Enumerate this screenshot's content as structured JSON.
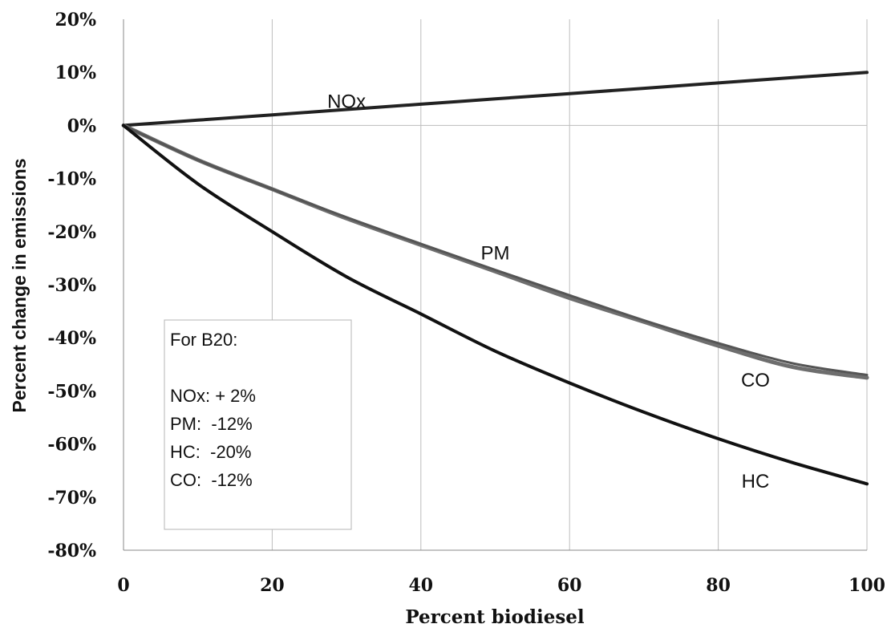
{
  "chart_data": {
    "type": "line",
    "title": "",
    "xlabel": "Percent biodiesel",
    "ylabel": "Percent change in emissions",
    "xlim": [
      0,
      100
    ],
    "ylim": [
      -80,
      20
    ],
    "x_ticks": [
      0,
      20,
      40,
      60,
      80,
      100
    ],
    "y_ticks": [
      20,
      10,
      0,
      -10,
      -20,
      -30,
      -40,
      -50,
      -60,
      -70,
      -80
    ],
    "x_tick_labels": [
      "0",
      "20",
      "40",
      "60",
      "80",
      "100"
    ],
    "y_tick_labels": [
      "20%",
      "10%",
      "0%",
      "-10%",
      "-20%",
      "-30%",
      "-40%",
      "-50%",
      "-60%",
      "-70%",
      "-80%"
    ],
    "grid": "vertical",
    "series": [
      {
        "name": "NOx",
        "color": "#222222",
        "x": [
          0,
          10,
          20,
          30,
          40,
          50,
          60,
          70,
          80,
          90,
          100
        ],
        "y": [
          0,
          1,
          2,
          3,
          4,
          5,
          6,
          7,
          8,
          9,
          10
        ]
      },
      {
        "name": "PM",
        "color": "#6e6e6e",
        "x": [
          0,
          10,
          20,
          30,
          40,
          50,
          60,
          70,
          80,
          90,
          100
        ],
        "y": [
          0,
          -6.5,
          -12,
          -17.5,
          -22.5,
          -27.5,
          -32.5,
          -37,
          -41.5,
          -45.5,
          -47.5
        ]
      },
      {
        "name": "CO",
        "color": "#555555",
        "x": [
          0,
          10,
          20,
          30,
          40,
          50,
          60,
          70,
          80,
          90,
          100
        ],
        "y": [
          0,
          -6.5,
          -12,
          -17.3,
          -22.3,
          -27.2,
          -32,
          -36.7,
          -41,
          -44.8,
          -47
        ]
      },
      {
        "name": "HC",
        "color": "#111111",
        "x": [
          0,
          10,
          20,
          30,
          40,
          50,
          60,
          70,
          80,
          90,
          100
        ],
        "y": [
          0,
          -11,
          -20,
          -28.5,
          -35.5,
          -42.5,
          -48.5,
          -54,
          -59,
          -63.5,
          -67.5
        ]
      }
    ],
    "annotations": {
      "NOx": "NOx",
      "PM": "PM",
      "CO": "CO",
      "HC": "HC"
    },
    "note_box": {
      "lines": [
        "For B20:",
        "",
        "NOx: + 2%",
        "PM:  -12%",
        "HC:  -20%",
        "CO:  -12%"
      ]
    }
  }
}
